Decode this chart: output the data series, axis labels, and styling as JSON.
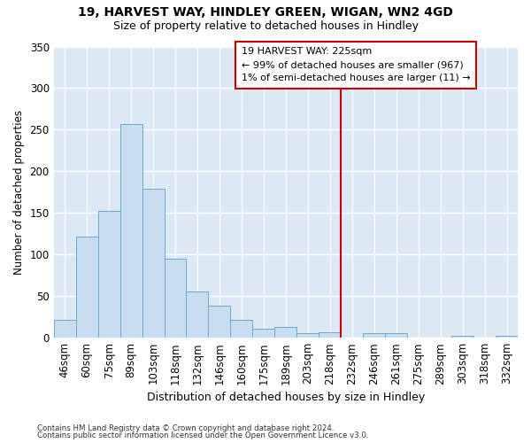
{
  "title1": "19, HARVEST WAY, HINDLEY GREEN, WIGAN, WN2 4GD",
  "title2": "Size of property relative to detached houses in Hindley",
  "xlabel": "Distribution of detached houses by size in Hindley",
  "ylabel": "Number of detached properties",
  "categories": [
    "46sqm",
    "60sqm",
    "75sqm",
    "89sqm",
    "103sqm",
    "118sqm",
    "132sqm",
    "146sqm",
    "160sqm",
    "175sqm",
    "189sqm",
    "203sqm",
    "218sqm",
    "232sqm",
    "246sqm",
    "261sqm",
    "275sqm",
    "289sqm",
    "303sqm",
    "318sqm",
    "332sqm"
  ],
  "values": [
    22,
    122,
    152,
    257,
    179,
    95,
    56,
    38,
    22,
    11,
    13,
    6,
    7,
    0,
    5,
    5,
    0,
    0,
    2,
    0,
    2
  ],
  "bar_color": "#c9ddf0",
  "bar_edge_color": "#6aaad4",
  "plot_bg_color": "#dce9f5",
  "fig_bg_color": "#ffffff",
  "grid_color": "#ffffff",
  "vline_color": "#cc0000",
  "vline_x": 13.0,
  "ann_line1": "19 HARVEST WAY: 225sqm",
  "ann_line2": "← 99% of detached houses are smaller (967)",
  "ann_line3": "1% of semi-detached houses are larger (11) →",
  "ann_box_edge_color": "#cc0000",
  "footnote1": "Contains HM Land Registry data © Crown copyright and database right 2024.",
  "footnote2": "Contains public sector information licensed under the Open Government Licence v3.0.",
  "ylim": [
    0,
    350
  ],
  "yticks": [
    0,
    50,
    100,
    150,
    200,
    250,
    300,
    350
  ]
}
